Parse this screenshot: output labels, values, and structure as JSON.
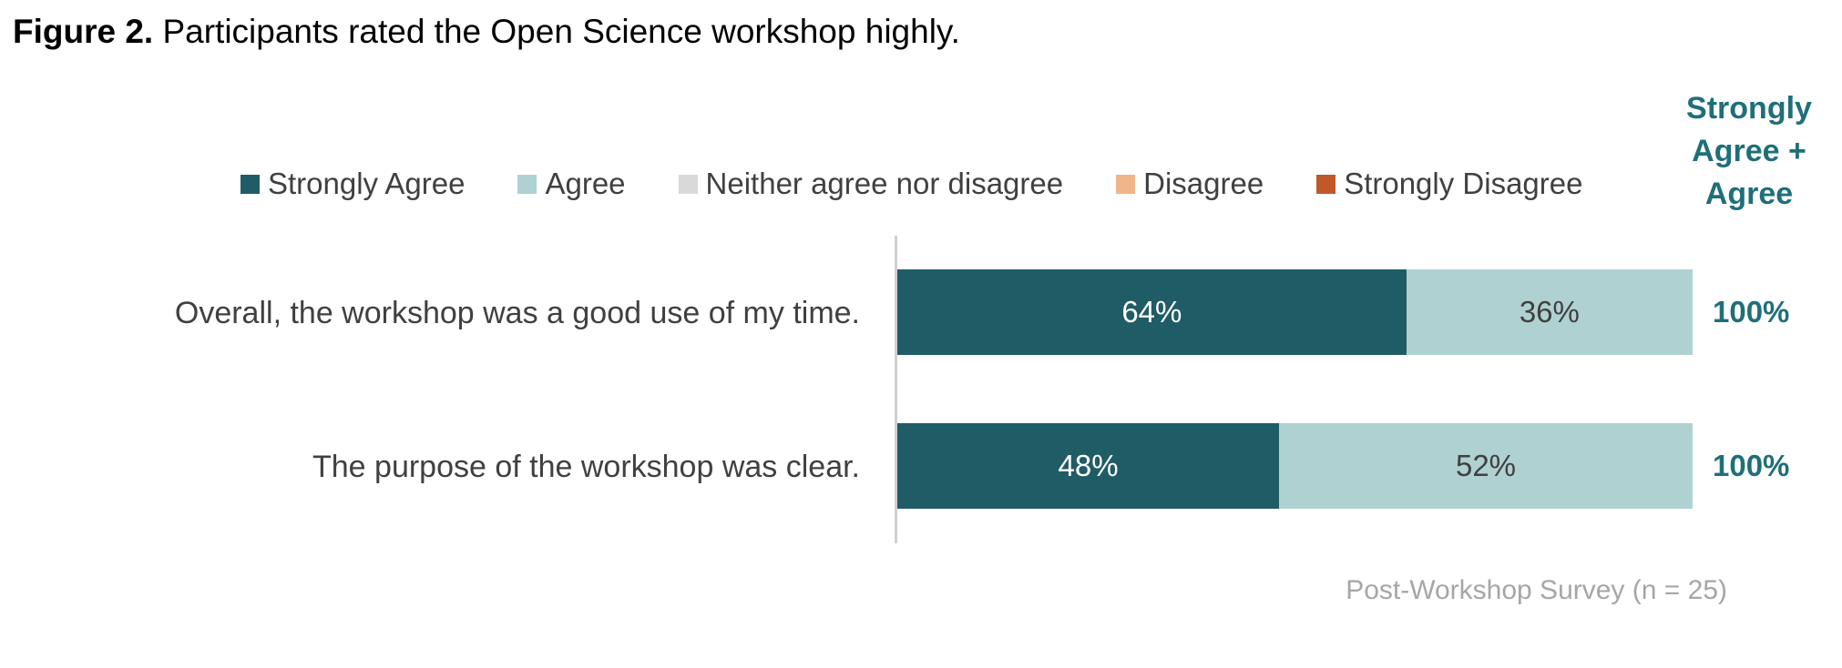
{
  "figure": {
    "title_prefix": "Figure 2.",
    "title_text": " Participants rated the Open Science workshop highly."
  },
  "total_header": "Strongly Agree + Agree",
  "source_note": "Post-Workshop Survey (n = 25)",
  "colors": {
    "strongly_agree": "#1f5c66",
    "agree": "#b0d1d2",
    "neither": "#d9d9d9",
    "disagree": "#f1b58a",
    "strongly_disagree": "#c0582a",
    "total_text": "#1f6f7a"
  },
  "chart_data": {
    "type": "bar",
    "orientation": "horizontal",
    "stacked": true,
    "unit": "%",
    "xlim": [
      0,
      100
    ],
    "legend_position": "top",
    "grid": false,
    "categories": [
      "Overall, the workshop was a good use of my time.",
      "The purpose of the workshop was clear."
    ],
    "series": [
      {
        "name": "Strongly Agree",
        "values": [
          64,
          48
        ],
        "labels": [
          "64%",
          "48%"
        ],
        "color": "#1f5c66",
        "label_color": "#ffffff"
      },
      {
        "name": "Agree",
        "values": [
          36,
          52
        ],
        "labels": [
          "36%",
          "52%"
        ],
        "color": "#b0d1d2",
        "label_color": "#404040"
      },
      {
        "name": "Neither agree nor disagree",
        "values": [
          0,
          0
        ],
        "labels": [
          "",
          ""
        ],
        "color": "#d9d9d9",
        "label_color": "#404040"
      },
      {
        "name": "Disagree",
        "values": [
          0,
          0
        ],
        "labels": [
          "",
          ""
        ],
        "color": "#f1b58a",
        "label_color": "#404040"
      },
      {
        "name": "Strongly Disagree",
        "values": [
          0,
          0
        ],
        "labels": [
          "",
          ""
        ],
        "color": "#c0582a",
        "label_color": "#ffffff"
      }
    ],
    "totals": [
      "100%",
      "100%"
    ]
  }
}
